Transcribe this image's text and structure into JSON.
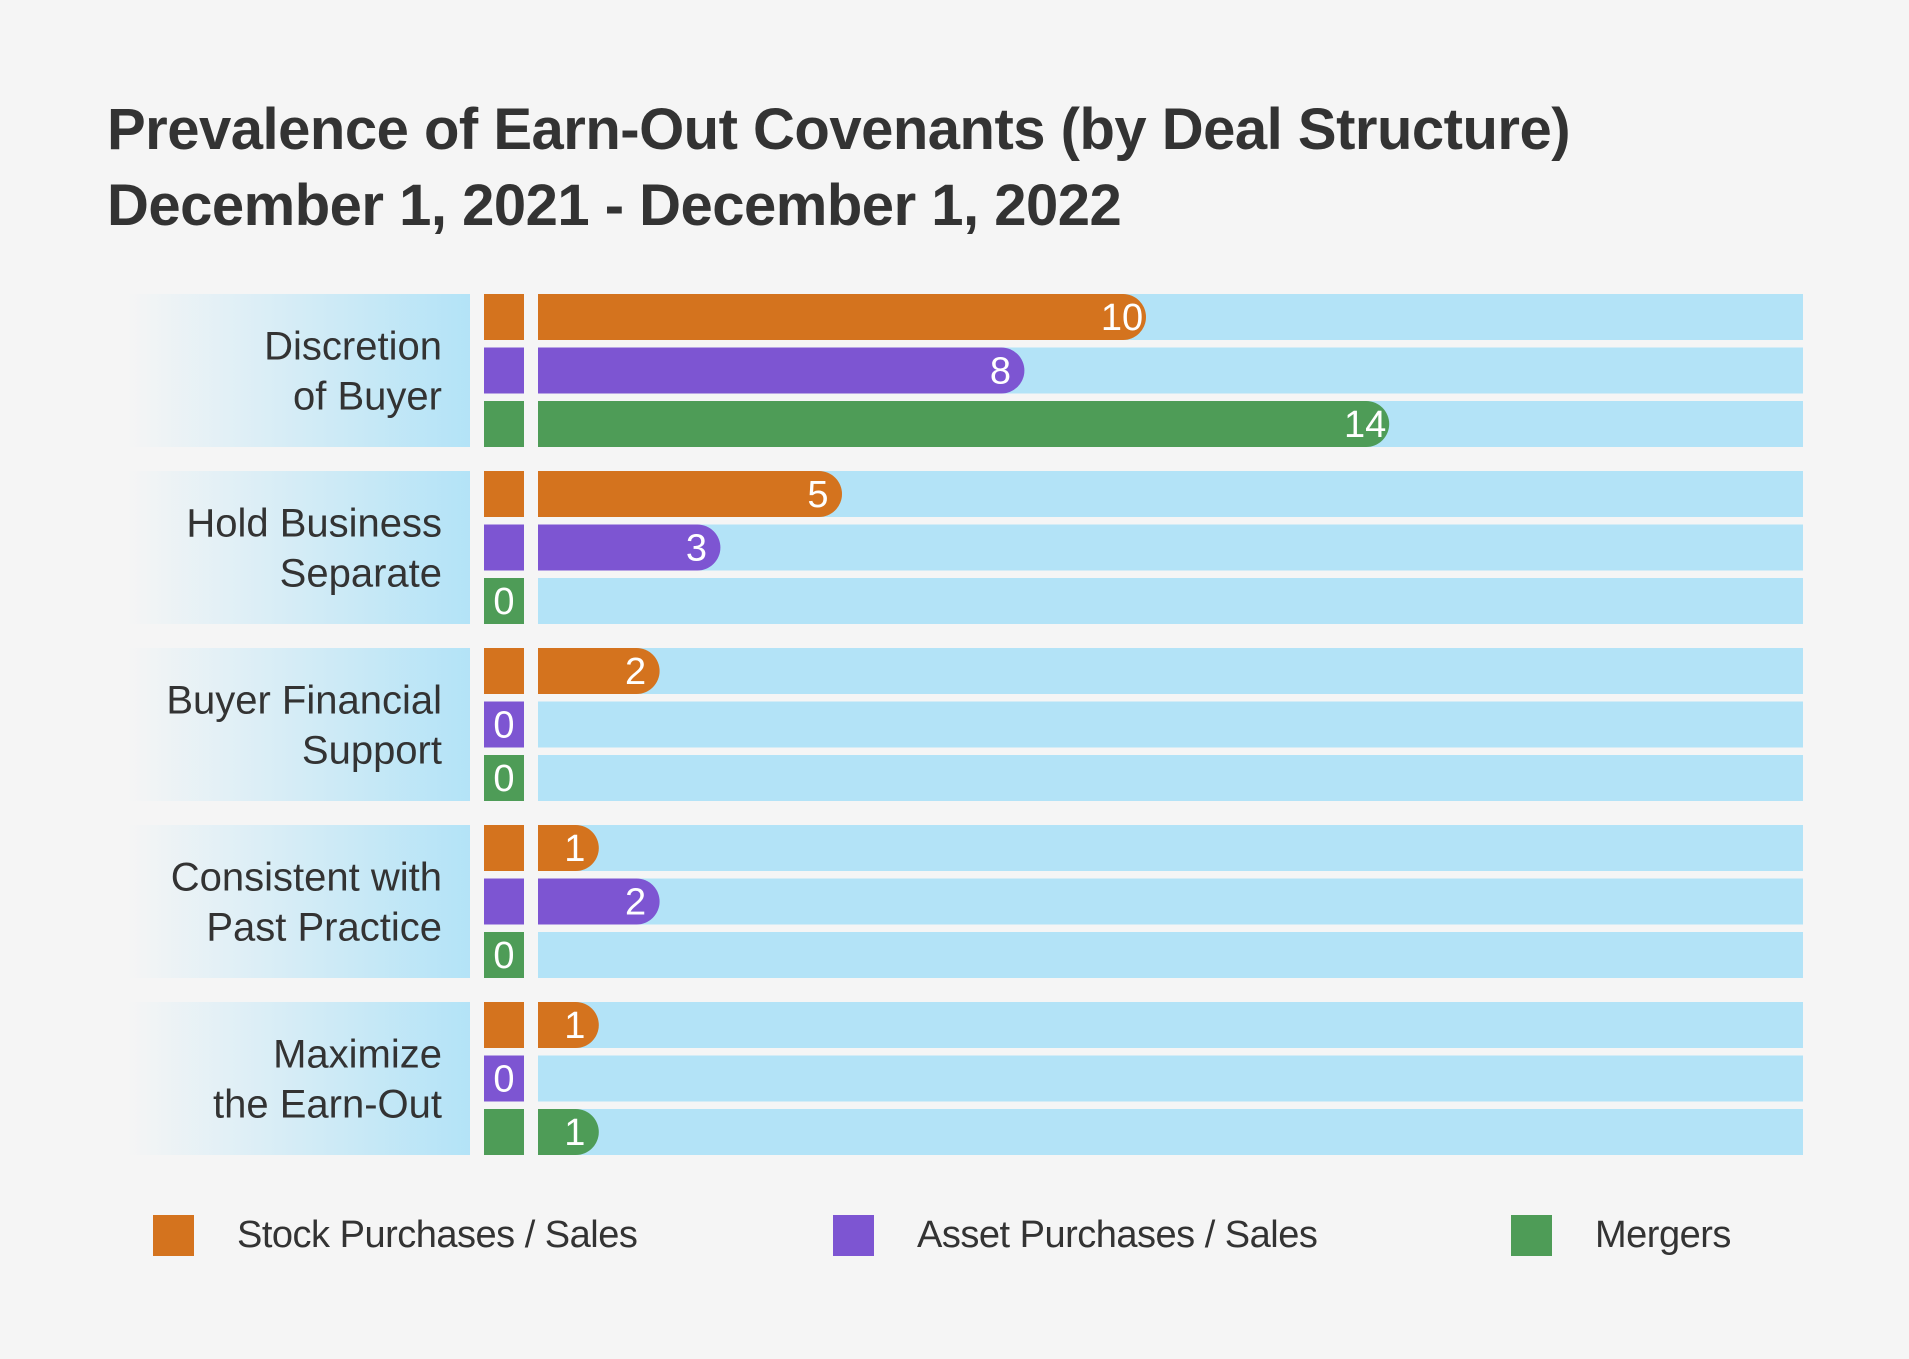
{
  "title": {
    "line1": "Prevalence of Earn-Out Covenants (by Deal Structure)",
    "line2": "December 1, 2021 - December 1, 2022"
  },
  "chart_data": {
    "type": "bar",
    "orientation": "horizontal",
    "categories": [
      "Discretion of Buyer",
      "Hold Business Separate",
      "Buyer Financial Support",
      "Consistent with Past Practice",
      "Maximize the Earn-Out"
    ],
    "category_lines": [
      [
        "Discretion",
        "of Buyer"
      ],
      [
        "Hold Business",
        "Separate"
      ],
      [
        "Buyer Financial",
        "Support"
      ],
      [
        "Consistent with",
        "Past Practice"
      ],
      [
        "Maximize",
        "the Earn-Out"
      ]
    ],
    "series": [
      {
        "name": "Stock Purchases / Sales",
        "color": "#d4731e",
        "values": [
          10,
          5,
          2,
          1,
          1
        ]
      },
      {
        "name": "Asset Purchases / Sales",
        "color": "#7d55d2",
        "values": [
          8,
          3,
          0,
          2,
          0
        ]
      },
      {
        "name": "Mergers",
        "color": "#4e9c57",
        "values": [
          14,
          0,
          0,
          0,
          1
        ]
      }
    ],
    "xlim": [
      0,
      15
    ],
    "data_labels": true,
    "legend_position": "bottom",
    "track_color": "#b3e3f7"
  }
}
